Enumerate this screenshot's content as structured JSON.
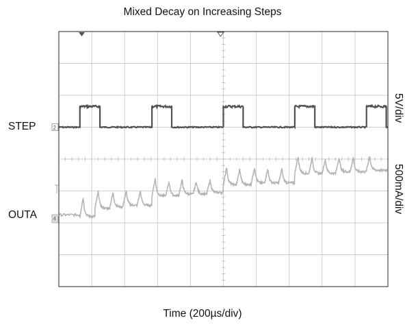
{
  "chart_data": {
    "type": "line",
    "title": "Mixed Decay on Increasing Steps",
    "xlabel": "Time (200µs/div)",
    "grid": {
      "x_divisions": 10,
      "y_divisions": 8
    },
    "channels": [
      {
        "label": "STEP",
        "scale": "5V/div",
        "color": "#505050",
        "marker": "2"
      },
      {
        "label": "OUTA",
        "scale": "500mA/div",
        "color": "#b4b4b4",
        "marker": "4"
      }
    ],
    "step_signal": {
      "x_unit": "div",
      "low_high_div": [
        0.0,
        0.65
      ],
      "edges_div": [
        0.64,
        1.25,
        2.83,
        3.43,
        5.0,
        5.6,
        7.17,
        7.78,
        9.35,
        9.95
      ]
    },
    "outa_signal": {
      "x_unit": "div",
      "spike_times_div": [
        0.64,
        1.1,
        1.55,
        1.95,
        2.38,
        2.83,
        3.25,
        3.65,
        4.08,
        4.5,
        5.0,
        5.4,
        5.85,
        6.25,
        6.68,
        7.17,
        7.6,
        8.0,
        8.42,
        8.85,
        9.35
      ],
      "baseline_div": [
        -1.8,
        -1.55,
        -1.5,
        -1.45,
        -1.45,
        -1.15,
        -1.15,
        -1.1,
        -1.1,
        -1.05,
        -0.8,
        -0.8,
        -0.75,
        -0.75,
        -0.75,
        -0.45,
        -0.45,
        -0.45,
        -0.4,
        -0.4,
        -0.35
      ],
      "spike_amp_div": [
        0.6,
        0.55,
        0.45,
        0.45,
        0.45,
        0.55,
        0.45,
        0.45,
        0.4,
        0.4,
        0.55,
        0.5,
        0.5,
        0.45,
        0.45,
        0.55,
        0.5,
        0.45,
        0.45,
        0.45,
        0.45
      ]
    }
  }
}
